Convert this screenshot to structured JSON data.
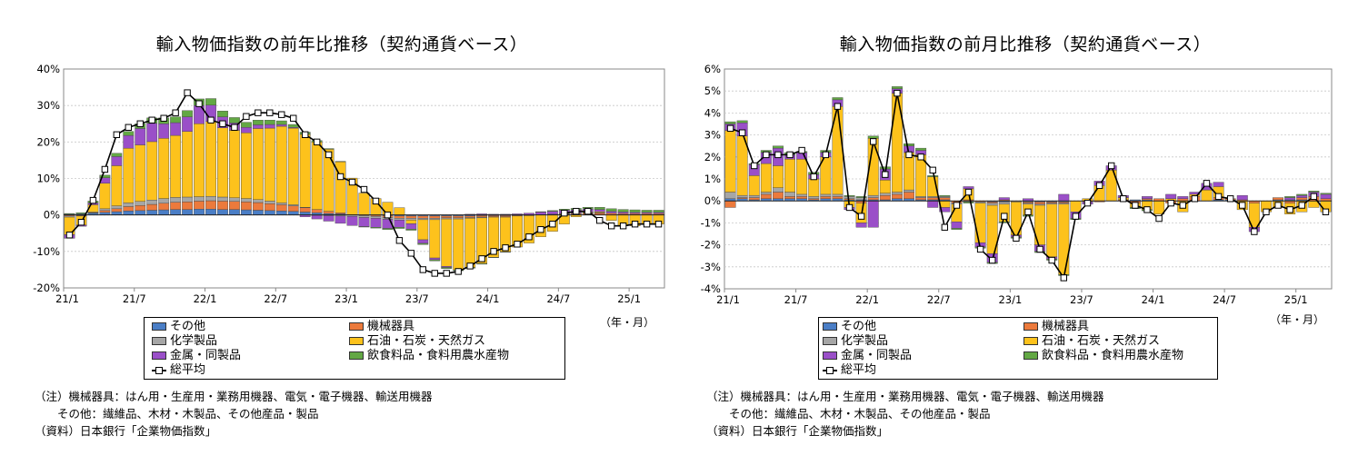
{
  "charts": [
    {
      "title": "輸入物価指数の前年比推移（契約通貨ベース）",
      "unit_label": "（年・月）",
      "notes": [
        "（注）機械器具：はん用・生産用・業務用機器、電気・電子機器、輸送用機器",
        "　　その他：繊維品、木材・木製品、その他産品・製品",
        "（資料）日本銀行「企業物価指数」"
      ]
    },
    {
      "title": "輸入物価指数の前月比推移（契約通貨ベース）",
      "unit_label": "（年・月）",
      "notes": [
        "（注）機械器具：はん用・生産用・業務用機器、電気・電子機器、輸送用機器",
        "　　その他：繊維品、木材・木製品、その他産品・製品",
        "（資料）日本銀行「企業物価指数」"
      ]
    }
  ],
  "legend": {
    "items": [
      {
        "label": "その他",
        "color": "#4a7ec6"
      },
      {
        "label": "機械器具",
        "color": "#ec7a3c"
      },
      {
        "label": "化学製品",
        "color": "#a6a6a6"
      },
      {
        "label": "石油・石炭・天然ガス",
        "color": "#fdc21c"
      },
      {
        "label": "金属・同製品",
        "color": "#9a4fc8"
      },
      {
        "label": "飲食料品・食料用農水産物",
        "color": "#63a844"
      }
    ],
    "line_label": "総平均"
  },
  "chart_data": [
    {
      "type": "bar",
      "stacked": true,
      "title": "輸入物価指数の前年比推移（契約通貨ベース）",
      "x_tick_labels": [
        "21/1",
        "21/7",
        "22/1",
        "22/7",
        "23/1",
        "23/7",
        "24/1",
        "24/7",
        "25/1"
      ],
      "x_tick_index": [
        0,
        6,
        12,
        18,
        24,
        30,
        36,
        42,
        48
      ],
      "n_periods": 51,
      "y_tick_labels": [
        "40%",
        "30%",
        "20%",
        "10%",
        "0%",
        "-10%",
        "-20%"
      ],
      "ylim": [
        -20,
        40
      ],
      "y_step": 10,
      "grid": true,
      "legend_position": "bottom",
      "series": [
        {
          "name": "その他",
          "values": [
            0.2,
            0.3,
            0.5,
            0.7,
            0.9,
            1.1,
            1.2,
            1.3,
            1.4,
            1.5,
            1.5,
            1.6,
            1.6,
            1.5,
            1.5,
            1.4,
            1.3,
            1.2,
            1.1,
            1.0,
            0.8,
            0.6,
            0.4,
            0.3,
            0.1,
            0,
            -0.1,
            -0.2,
            -0.3,
            -0.3,
            -0.3,
            -0.3,
            -0.3,
            -0.3,
            -0.3,
            -0.2,
            -0.2,
            -0.2,
            -0.1,
            -0.1,
            0,
            0,
            0.1,
            0.1,
            0.1,
            0,
            0,
            0,
            0,
            0,
            0
          ]
        },
        {
          "name": "機械器具",
          "values": [
            -0.3,
            -0.2,
            0.1,
            0.5,
            0.8,
            1.2,
            1.4,
            1.6,
            1.8,
            2.0,
            2.1,
            2.2,
            2.3,
            2.3,
            2.2,
            2.2,
            2.1,
            1.9,
            1.7,
            1.5,
            1.2,
            0.9,
            0.6,
            0.3,
            0,
            -0.2,
            -0.3,
            -0.5,
            -0.6,
            -0.6,
            -0.6,
            -0.6,
            -0.5,
            -0.5,
            -0.4,
            -0.4,
            -0.3,
            -0.3,
            -0.2,
            -0.1,
            0,
            0.1,
            0.2,
            0.3,
            0.4,
            0.5,
            0.5,
            0.4,
            0.4,
            0.4,
            0.4
          ]
        },
        {
          "name": "化学製品",
          "values": [
            -0.3,
            -0.1,
            0.2,
            0.5,
            0.8,
            1.0,
            1.1,
            1.2,
            1.3,
            1.3,
            1.3,
            1.2,
            1.2,
            1.1,
            1.0,
            0.9,
            0.8,
            0.7,
            0.5,
            0.3,
            0.1,
            -0.1,
            -0.2,
            -0.3,
            -0.4,
            -0.5,
            -0.5,
            -0.5,
            -0.5,
            -0.5,
            -0.4,
            -0.4,
            -0.3,
            -0.3,
            -0.2,
            -0.2,
            -0.1,
            -0.1,
            0,
            0,
            0.1,
            0.1,
            0.1,
            0.1,
            0.1,
            0.1,
            0,
            0,
            0,
            0,
            0
          ]
        },
        {
          "name": "石油・石炭・天然ガス",
          "values": [
            -4.8,
            -2.5,
            2.0,
            7.0,
            11.0,
            15.0,
            15.5,
            16.0,
            16.5,
            17.0,
            18.0,
            20.0,
            20.5,
            19.0,
            18.5,
            18.0,
            19.5,
            20.0,
            21.0,
            21.0,
            20.0,
            18.5,
            17.0,
            14.0,
            10.0,
            6.0,
            4.5,
            3.5,
            2.0,
            -1.0,
            -5.5,
            -10.5,
            -13.0,
            -14.0,
            -13.5,
            -12.5,
            -11.0,
            -9.5,
            -8.5,
            -7.5,
            -6.0,
            -4.5,
            -2.5,
            -0.5,
            0.2,
            0.3,
            -1.5,
            -3.0,
            -3.0,
            -2.5,
            -2.5
          ]
        },
        {
          "name": "金属・同製品",
          "values": [
            -1.0,
            -0.3,
            0.5,
            1.5,
            2.5,
            3.5,
            4.5,
            5.0,
            4.0,
            3.5,
            4.0,
            5.0,
            4.5,
            3.0,
            2.0,
            1.5,
            1.0,
            1.0,
            0.5,
            0.2,
            -0.5,
            -1.0,
            -1.5,
            -2.0,
            -2.5,
            -2.5,
            -2.5,
            -2.5,
            -2.0,
            -1.5,
            -1.0,
            -0.5,
            -0.3,
            0,
            0.2,
            0.3,
            0.2,
            0.2,
            0.3,
            0.5,
            0.7,
            0.8,
            0.9,
            0.9,
            0.8,
            0.6,
            0.5,
            0.4,
            0.3,
            0.3,
            0.3
          ]
        },
        {
          "name": "飲食料品・食料用農水産物",
          "values": [
            0.2,
            0.3,
            0.5,
            0.7,
            0.9,
            1.1,
            1.3,
            1.5,
            1.6,
            1.6,
            1.7,
            1.8,
            1.8,
            1.6,
            1.5,
            1.4,
            1.3,
            1.2,
            1.0,
            0.8,
            0.6,
            0.4,
            0.2,
            0.1,
            0,
            -0.1,
            -0.2,
            -0.3,
            -0.3,
            -0.3,
            -0.3,
            -0.3,
            -0.3,
            -0.2,
            -0.2,
            -0.2,
            -0.1,
            -0.1,
            0,
            0,
            0.1,
            0.2,
            0.3,
            0.4,
            0.5,
            0.6,
            0.7,
            0.7,
            0.7,
            0.6,
            0.6
          ]
        }
      ],
      "line_series": {
        "name": "総平均",
        "values": [
          -5.5,
          -2.0,
          4.0,
          12.5,
          22.0,
          24.0,
          25.0,
          26.0,
          26.5,
          28.0,
          33.5,
          30.5,
          26.0,
          25.0,
          24.0,
          27.0,
          28.0,
          28.0,
          27.5,
          26.5,
          22.0,
          20.0,
          16.5,
          10.5,
          9.0,
          7.0,
          3.8,
          0,
          -7.0,
          -10.5,
          -15.0,
          -16.0,
          -16.0,
          -15.5,
          -14.0,
          -12.0,
          -10.0,
          -9.0,
          -8.0,
          -6.0,
          -4.0,
          -2.5,
          0.5,
          1.0,
          1.0,
          -1.5,
          -3.0,
          -3.0,
          -2.5,
          -2.5,
          -2.5
        ]
      }
    },
    {
      "type": "bar",
      "stacked": true,
      "title": "輸入物価指数の前月比推移（契約通貨ベース）",
      "x_tick_labels": [
        "21/1",
        "21/7",
        "22/1",
        "22/7",
        "23/1",
        "23/7",
        "24/1",
        "24/7",
        "25/1"
      ],
      "x_tick_index": [
        0,
        6,
        12,
        18,
        24,
        30,
        36,
        42,
        48
      ],
      "n_periods": 51,
      "y_tick_labels": [
        "6%",
        "5%",
        "4%",
        "3%",
        "2%",
        "1%",
        "0%",
        "-1%",
        "-2%",
        "-3%",
        "-4%"
      ],
      "ylim": [
        -4,
        6
      ],
      "y_step": 1,
      "grid": true,
      "legend_position": "bottom",
      "series": [
        {
          "name": "その他",
          "values": [
            0.1,
            0.1,
            0.05,
            0.1,
            0.1,
            0.1,
            0.1,
            0.05,
            0.1,
            0.1,
            0.05,
            0.05,
            0.05,
            0.05,
            0.1,
            0.1,
            0.05,
            0.05,
            0.05,
            0,
            0,
            0,
            -0.05,
            -0.05,
            0,
            -0.05,
            -0.05,
            -0.05,
            -0.05,
            0,
            0,
            0,
            0,
            0,
            0.05,
            0.05,
            0,
            0,
            0,
            0,
            0,
            0.05,
            0.05,
            0,
            0,
            0,
            0.05,
            0.05,
            0.05,
            0,
            0
          ]
        },
        {
          "name": "機械器具",
          "values": [
            -0.3,
            0.05,
            0.1,
            0.2,
            0.3,
            0.1,
            0.1,
            0.05,
            0.1,
            0.1,
            0.05,
            -0.1,
            0.1,
            0.2,
            0.2,
            0.3,
            0.1,
            0.1,
            0.1,
            -0.1,
            0.05,
            -0.05,
            -0.05,
            0.05,
            0,
            -0.05,
            -0.1,
            -0.05,
            -0.05,
            0,
            -0.05,
            -0.05,
            0,
            0.05,
            -0.1,
            0.05,
            0.1,
            -0.1,
            0.1,
            0.2,
            0,
            0.1,
            0.05,
            0.05,
            -0.1,
            0,
            0.1,
            -0.1,
            0.1,
            0.2,
            0.1
          ]
        },
        {
          "name": "化学製品",
          "values": [
            0.3,
            0.1,
            0.1,
            0.1,
            0.2,
            0.2,
            0.1,
            0.1,
            0.1,
            0.1,
            0.1,
            0.1,
            0.1,
            0.1,
            0.1,
            0.1,
            0.05,
            0.05,
            0.05,
            -0.05,
            -0.05,
            -0.05,
            -0.1,
            -0.1,
            -0.05,
            -0.05,
            -0.05,
            -0.05,
            -0.05,
            0,
            0,
            0,
            0,
            0,
            0,
            0,
            0,
            0,
            0,
            0,
            0,
            0,
            0,
            0,
            0,
            0,
            0,
            0,
            0,
            0,
            0
          ]
        },
        {
          "name": "石油・石炭・天然ガス",
          "values": [
            2.8,
            2.7,
            0.9,
            1.3,
            1.0,
            1.5,
            1.6,
            0.8,
            1.7,
            4.0,
            -0.3,
            -0.9,
            2.6,
            0.6,
            4.5,
            1.7,
            1.9,
            0.9,
            -0.3,
            -0.8,
            0.5,
            -1.8,
            -2.2,
            -0.8,
            -1.5,
            -0.5,
            -1.8,
            -2.4,
            -3.2,
            -0.5,
            0.1,
            0.7,
            1.4,
            0.1,
            -0.2,
            -0.4,
            -0.6,
            0.1,
            -0.5,
            0.1,
            0.5,
            0.5,
            0,
            -0.4,
            -1.1,
            -0.5,
            -0.3,
            -0.5,
            -0.5,
            -0.3,
            -0.5
          ]
        },
        {
          "name": "金属・同製品",
          "values": [
            0.3,
            0.6,
            0.5,
            0.5,
            0.8,
            0.2,
            0.3,
            0.2,
            0.2,
            0.3,
            -0.1,
            -0.2,
            -1.2,
            0.5,
            0.2,
            0.3,
            0.2,
            -0.3,
            -0.2,
            -0.3,
            0.1,
            -0.2,
            -0.4,
            0.1,
            -0.1,
            0.1,
            -0.3,
            -0.1,
            0.3,
            -0.3,
            -0.1,
            0.2,
            0.2,
            0.1,
            0,
            0.1,
            0,
            0.2,
            0.1,
            0.1,
            0.3,
            0.2,
            0,
            0.2,
            -0.2,
            0,
            0,
            0.1,
            0.1,
            0.2,
            0.2
          ]
        },
        {
          "name": "飲食料品・食料用農水産物",
          "values": [
            0.1,
            0.1,
            0.05,
            0.1,
            0.1,
            0.1,
            0.05,
            0.1,
            0.1,
            0.1,
            0.05,
            0.05,
            0.1,
            0.1,
            0.1,
            0.1,
            0.1,
            0.05,
            0.05,
            -0.05,
            -0.05,
            -0.05,
            -0.05,
            -0.05,
            -0.05,
            -0.05,
            -0.05,
            -0.05,
            -0.05,
            -0.05,
            0,
            0,
            0,
            0,
            -0.05,
            -0.05,
            0,
            0,
            0,
            0,
            0,
            0,
            0,
            0,
            0,
            0,
            0,
            0.05,
            0.05,
            0.05,
            0.05
          ]
        }
      ],
      "line_series": {
        "name": "総平均",
        "values": [
          3.3,
          3.1,
          1.6,
          2.1,
          2.1,
          2.1,
          2.3,
          1.1,
          2.1,
          4.3,
          -0.3,
          -0.7,
          2.7,
          1.2,
          4.9,
          2.1,
          2.0,
          1.4,
          -1.2,
          -0.2,
          0.4,
          -2.2,
          -2.7,
          -0.7,
          -1.7,
          -0.5,
          -2.2,
          -2.7,
          -3.5,
          -0.7,
          -0.1,
          0.7,
          1.6,
          0.1,
          -0.2,
          -0.4,
          -0.8,
          -0.1,
          -0.2,
          0.1,
          0.8,
          0.2,
          0.1,
          -0.2,
          -1.4,
          -0.5,
          -0.2,
          -0.4,
          -0.2,
          0.2,
          -0.5
        ]
      }
    }
  ]
}
